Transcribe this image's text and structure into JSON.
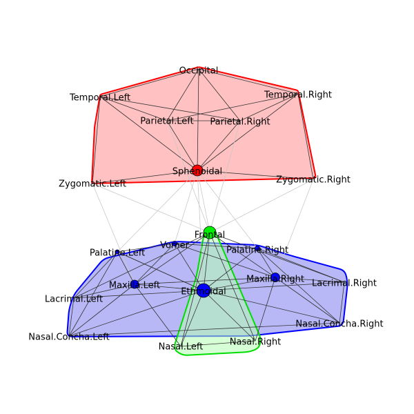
{
  "groups": [
    {
      "id": "cranial",
      "fill": "#ffbebe",
      "stroke": "#ff0000"
    },
    {
      "id": "facial",
      "fill": "#b4b4f5",
      "stroke": "#0000ff"
    },
    {
      "id": "central",
      "fill": "#b4ffb4",
      "stroke": "#00dd00"
    }
  ],
  "nodes": [
    {
      "id": "occipital",
      "label": "Occipital",
      "group": "cranial"
    },
    {
      "id": "temporal_left",
      "label": "Temporal.Left",
      "group": "cranial"
    },
    {
      "id": "temporal_right",
      "label": "Temporal.Right",
      "group": "cranial"
    },
    {
      "id": "parietal_left",
      "label": "Parietal.Left",
      "group": "cranial"
    },
    {
      "id": "parietal_right",
      "label": "Parietal.Right",
      "group": "cranial"
    },
    {
      "id": "sphenoidal",
      "label": "Sphenoidal",
      "group": "cranial",
      "marker_color": "#ff0000"
    },
    {
      "id": "zygomatic_left",
      "label": "Zygomatic.Left",
      "group": "cranial"
    },
    {
      "id": "zygomatic_right",
      "label": "Zygomatic.Right",
      "group": "cranial"
    },
    {
      "id": "frontal",
      "label": "Frontal",
      "group": "central",
      "marker_color": "#00ee00"
    },
    {
      "id": "vomer",
      "label": "Vomer",
      "group": "facial",
      "marker_color": "#0000ff"
    },
    {
      "id": "palatine_left",
      "label": "Palatine.Left",
      "group": "facial",
      "marker_color": "#0000ff"
    },
    {
      "id": "palatine_right",
      "label": "Palatine.Right",
      "group": "facial",
      "marker_color": "#0000ff"
    },
    {
      "id": "maxilla_left",
      "label": "Maxilla.Left",
      "group": "facial",
      "marker_color": "#0000ff"
    },
    {
      "id": "maxilla_right",
      "label": "Maxilla.Right",
      "group": "facial",
      "marker_color": "#0000ff"
    },
    {
      "id": "ethmoidal",
      "label": "Ethmoidal",
      "group": "facial",
      "marker_color": "#0000ff"
    },
    {
      "id": "lacrimal_left",
      "label": "Lacrimal.Left",
      "group": "facial"
    },
    {
      "id": "lacrimal_right",
      "label": "Lacrimal.Right",
      "group": "facial"
    },
    {
      "id": "nasal_concha_left",
      "label": "Nasal.Concha.Left",
      "group": "facial"
    },
    {
      "id": "nasal_concha_right",
      "label": "Nasal.Concha.Right",
      "group": "facial"
    },
    {
      "id": "nasal_left",
      "label": "Nasal.Left",
      "group": "central"
    },
    {
      "id": "nasal_right",
      "label": "Nasal.Right",
      "group": "central"
    }
  ],
  "edge_colors": {
    "within": "#333333",
    "between": "#c8c8c8"
  },
  "edges": [
    [
      "occipital",
      "temporal_left"
    ],
    [
      "occipital",
      "temporal_right"
    ],
    [
      "occipital",
      "parietal_left"
    ],
    [
      "occipital",
      "parietal_right"
    ],
    [
      "occipital",
      "sphenoidal"
    ],
    [
      "temporal_left",
      "parietal_left"
    ],
    [
      "temporal_left",
      "sphenoidal"
    ],
    [
      "temporal_left",
      "zygomatic_left"
    ],
    [
      "temporal_left",
      "parietal_right"
    ],
    [
      "temporal_right",
      "parietal_right"
    ],
    [
      "temporal_right",
      "sphenoidal"
    ],
    [
      "temporal_right",
      "zygomatic_right"
    ],
    [
      "temporal_right",
      "parietal_left"
    ],
    [
      "parietal_left",
      "parietal_right"
    ],
    [
      "parietal_left",
      "sphenoidal"
    ],
    [
      "parietal_right",
      "sphenoidal"
    ],
    [
      "sphenoidal",
      "zygomatic_left"
    ],
    [
      "sphenoidal",
      "zygomatic_right"
    ],
    [
      "sphenoidal",
      "frontal"
    ],
    [
      "sphenoidal",
      "vomer"
    ],
    [
      "sphenoidal",
      "palatine_left"
    ],
    [
      "sphenoidal",
      "palatine_right"
    ],
    [
      "sphenoidal",
      "ethmoidal"
    ],
    [
      "zygomatic_left",
      "maxilla_left"
    ],
    [
      "zygomatic_left",
      "frontal"
    ],
    [
      "zygomatic_right",
      "maxilla_right"
    ],
    [
      "zygomatic_right",
      "frontal"
    ],
    [
      "parietal_right",
      "frontal"
    ],
    [
      "parietal_left",
      "frontal"
    ],
    [
      "frontal",
      "ethmoidal"
    ],
    [
      "frontal",
      "nasal_left"
    ],
    [
      "frontal",
      "nasal_right"
    ],
    [
      "frontal",
      "maxilla_left"
    ],
    [
      "frontal",
      "maxilla_right"
    ],
    [
      "frontal",
      "lacrimal_left"
    ],
    [
      "frontal",
      "lacrimal_right"
    ],
    [
      "ethmoidal",
      "nasal_left"
    ],
    [
      "ethmoidal",
      "nasal_right"
    ],
    [
      "ethmoidal",
      "vomer"
    ],
    [
      "ethmoidal",
      "palatine_left"
    ],
    [
      "ethmoidal",
      "palatine_right"
    ],
    [
      "ethmoidal",
      "maxilla_left"
    ],
    [
      "ethmoidal",
      "maxilla_right"
    ],
    [
      "ethmoidal",
      "lacrimal_left"
    ],
    [
      "ethmoidal",
      "lacrimal_right"
    ],
    [
      "ethmoidal",
      "nasal_concha_left"
    ],
    [
      "ethmoidal",
      "nasal_concha_right"
    ],
    [
      "vomer",
      "palatine_left"
    ],
    [
      "vomer",
      "palatine_right"
    ],
    [
      "vomer",
      "maxilla_left"
    ],
    [
      "vomer",
      "maxilla_right"
    ],
    [
      "palatine_left",
      "maxilla_left"
    ],
    [
      "palatine_left",
      "nasal_concha_left"
    ],
    [
      "palatine_left",
      "lacrimal_left"
    ],
    [
      "palatine_left",
      "ethmoidal"
    ],
    [
      "palatine_right",
      "maxilla_right"
    ],
    [
      "palatine_right",
      "nasal_concha_right"
    ],
    [
      "palatine_right",
      "lacrimal_right"
    ],
    [
      "maxilla_left",
      "lacrimal_left"
    ],
    [
      "maxilla_left",
      "nasal_concha_left"
    ],
    [
      "maxilla_left",
      "nasal_left"
    ],
    [
      "maxilla_left",
      "maxilla_right"
    ],
    [
      "maxilla_right",
      "lacrimal_right"
    ],
    [
      "maxilla_right",
      "nasal_concha_right"
    ],
    [
      "maxilla_right",
      "nasal_right"
    ],
    [
      "nasal_left",
      "nasal_right"
    ],
    [
      "nasal_concha_left",
      "nasal_concha_right"
    ],
    [
      "lacrimal_left",
      "nasal_concha_left"
    ],
    [
      "lacrimal_right",
      "nasal_concha_right"
    ]
  ]
}
